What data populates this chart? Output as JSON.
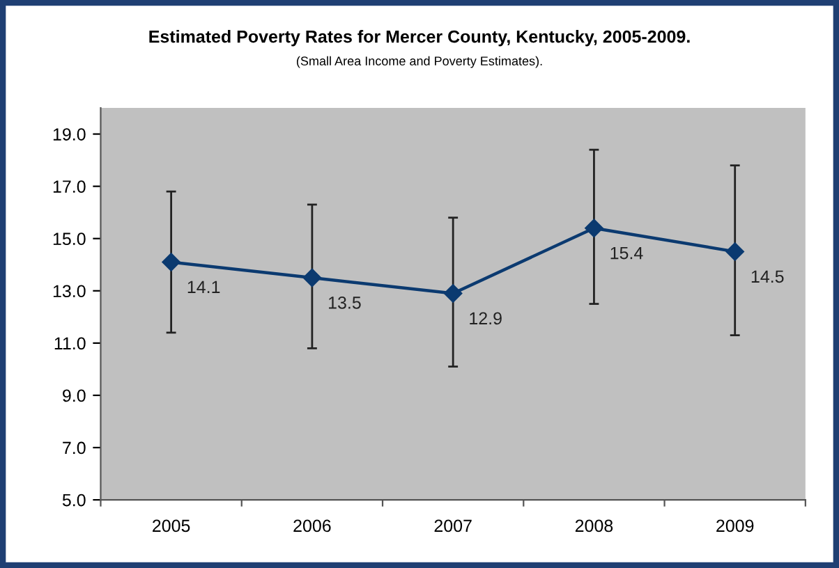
{
  "chart_data": {
    "type": "line",
    "title": "Estimated Poverty Rates for Mercer County, Kentucky, 2005-2009.",
    "subtitle": "(Small Area Income and Poverty Estimates).",
    "categories": [
      "2005",
      "2006",
      "2007",
      "2008",
      "2009"
    ],
    "series": [
      {
        "color": "#0b3a70",
        "values": [
          14.1,
          13.5,
          12.9,
          15.4,
          14.5
        ],
        "errors": [
          [
            11.4,
            16.8
          ],
          [
            10.8,
            16.3
          ],
          [
            10.1,
            15.8
          ],
          [
            12.5,
            18.4
          ],
          [
            11.3,
            17.8
          ]
        ]
      }
    ],
    "ylim": [
      5,
      20
    ],
    "yticks": [
      {
        "value": 5,
        "label": "5.0"
      },
      {
        "value": 7,
        "label": "7.0"
      },
      {
        "value": 9,
        "label": "9.0"
      },
      {
        "value": 11,
        "label": "11.0"
      },
      {
        "value": 13,
        "label": "13.0"
      },
      {
        "value": 15,
        "label": "15.0"
      },
      {
        "value": 17,
        "label": "17.0"
      },
      {
        "value": 19,
        "label": "19.0"
      }
    ],
    "data_labels": true,
    "marker": "diamond",
    "line_style": "solid",
    "grid": false,
    "legend": false
  }
}
